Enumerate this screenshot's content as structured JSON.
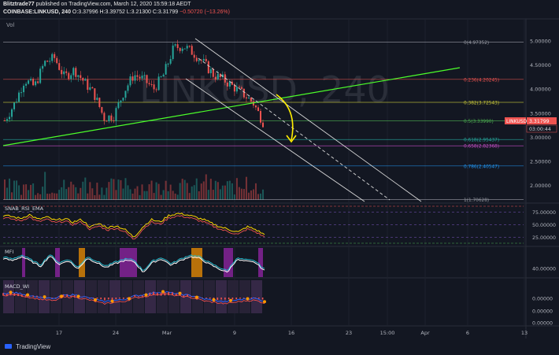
{
  "header": {
    "author": "Blitztrade77",
    "published": "published on TradingView.com, March 12, 2020 15:59:18 AEDT",
    "symbol_line": "COINBASE:LINKUSD, 240",
    "ohlc": "O:3.37996  H:3.39752  L:3.21300  C:3.31799",
    "change": "−0.50720 (−13.26%)"
  },
  "watermark": "LINKUSD, 240",
  "vol_label": "Vol",
  "brand": "TradingView",
  "colors": {
    "bg": "#131722",
    "up": "#26a69a",
    "down": "#ef5350",
    "trend": "#4cff2a",
    "channel": "#d8d8d8",
    "price_label": "#ef5350",
    "annotation": "#ffee00"
  },
  "chart_data": [
    {
      "type": "line",
      "title": "COINBASE:LINKUSD, 240",
      "x_tick_labels": [
        "17",
        "24",
        "Mar",
        "9",
        "16",
        "23",
        "15:00",
        "Apr",
        "6",
        "13"
      ],
      "y_tick_labels": [
        "5.00000",
        "4.50000",
        "4.00000",
        "3.50000",
        "3.00000",
        "2.50000",
        "2.00000"
      ],
      "ylim": [
        1.7,
        5.0
      ],
      "x": [
        1,
        2,
        3,
        4,
        5,
        6,
        7,
        8,
        9,
        10,
        11,
        12,
        13,
        14,
        15,
        16,
        17,
        18,
        19,
        20,
        21,
        22,
        23,
        24,
        25,
        26,
        27
      ],
      "close": [
        3.35,
        3.7,
        4.2,
        4.05,
        4.55,
        4.65,
        4.25,
        4.4,
        4.15,
        3.9,
        3.4,
        3.45,
        3.95,
        4.3,
        4.2,
        4.0,
        4.3,
        4.85,
        4.9,
        4.75,
        4.55,
        4.3,
        4.2,
        4.05,
        3.9,
        3.72,
        3.32
      ],
      "price_label": "LINKUSD",
      "current_price": "3.31799",
      "countdown": "03:00:44",
      "fibonacci": [
        {
          "label": "0(4.97352)",
          "value": 4.97352,
          "color": "#9598a1"
        },
        {
          "label": "0.236(4.20245)",
          "value": 4.20245,
          "color": "#ef5350"
        },
        {
          "label": "0.382(3.72543)",
          "value": 3.72543,
          "color": "#c7c73a"
        },
        {
          "label": "0.5(3.33990)",
          "value": 3.3399,
          "color": "#4caf50"
        },
        {
          "label": "0.618(2.95437)",
          "value": 2.95437,
          "color": "#26a69a"
        },
        {
          "label": "0.658(2.82368)",
          "value": 2.82368,
          "color": "#c44dc4"
        },
        {
          "label": "0.786(2.40547)",
          "value": 2.40547,
          "color": "#2196f3"
        },
        {
          "label": "1(1.70628)",
          "value": 1.70628,
          "color": "#9598a1"
        }
      ]
    },
    {
      "type": "line",
      "title": "SNAB_RSI_EMA",
      "y_tick_labels": [
        "75.00000",
        "50.00000",
        "25.00000"
      ],
      "ylim": [
        10,
        88
      ],
      "values": [
        68,
        66,
        62,
        70,
        60,
        65,
        58,
        62,
        55,
        60,
        45,
        52,
        44,
        48,
        40,
        25,
        45,
        60,
        55,
        68,
        72,
        70,
        65,
        60,
        52,
        45,
        40,
        35,
        46,
        40,
        30
      ]
    },
    {
      "type": "line",
      "title": "MFI",
      "y_tick_labels": [
        "40.00000"
      ],
      "ylim": [
        20,
        90
      ],
      "values": [
        65,
        60,
        70,
        58,
        45,
        72,
        50,
        60,
        38,
        66,
        55,
        42,
        52,
        60,
        58,
        30,
        55,
        64,
        48,
        60,
        70,
        66,
        52,
        40,
        30,
        62,
        58,
        55,
        34
      ]
    },
    {
      "type": "line",
      "title": "MACD_WI",
      "y_tick_labels": [
        "0.00000",
        "0.00000",
        "0.00000"
      ],
      "ylim": [
        -1,
        1
      ],
      "values": [
        0.3,
        0.35,
        0.25,
        0.1,
        0.0,
        -0.1,
        0.15,
        0.2,
        0.05,
        -0.1,
        -0.3,
        -0.2,
        -0.15,
        0.1,
        0.2,
        0.35,
        0.4,
        0.3,
        0.2,
        0.1,
        -0.1,
        -0.2,
        -0.3,
        -0.2,
        -0.1,
        -0.05,
        -0.25
      ]
    }
  ]
}
